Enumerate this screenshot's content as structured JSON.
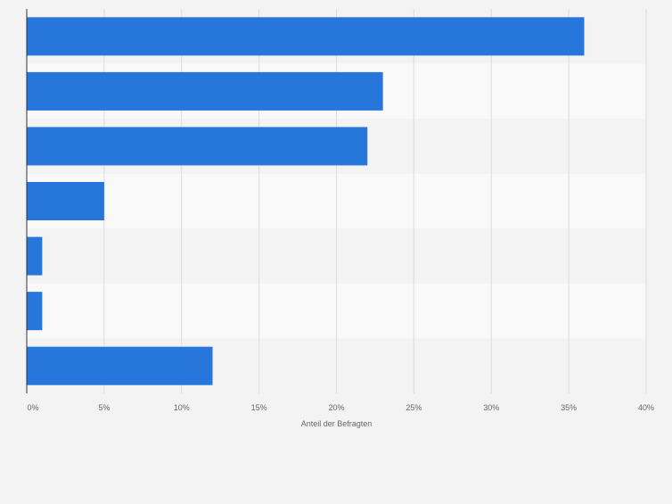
{
  "chart_data": {
    "type": "bar",
    "orientation": "horizontal",
    "categories": [
      "",
      "",
      "",
      "",
      "",
      "",
      ""
    ],
    "values": [
      36,
      23,
      22,
      5,
      1,
      1,
      12
    ],
    "xlabel": "Anteil der Befragten",
    "xlim": [
      0,
      40
    ],
    "xticks": [
      0,
      5,
      10,
      15,
      20,
      25,
      30,
      35,
      40
    ],
    "xtick_labels": [
      "0%",
      "5%",
      "10%",
      "15%",
      "20%",
      "25%",
      "30%",
      "35%",
      "40%"
    ],
    "grid": true,
    "legend": "none",
    "colors": {
      "bar": "#2776dc",
      "band_light": "#f9f9f9",
      "band_dark": "#f3f3f3",
      "grid": "#dcdcdc",
      "axis": "#333333",
      "tick_text": "#666666"
    }
  }
}
